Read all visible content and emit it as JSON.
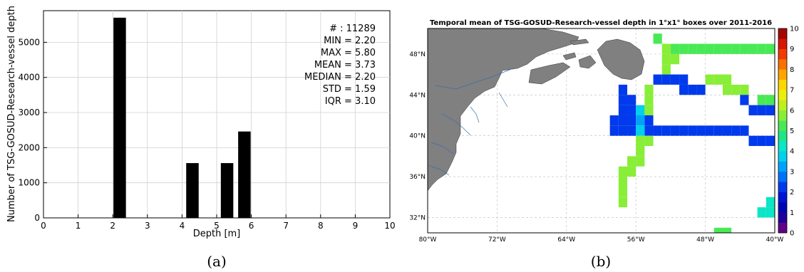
{
  "chart_data": [
    {
      "type": "bar",
      "panel_label": "(a)",
      "xlabel": "Depth [m]",
      "ylabel": "Number of TSG-GOSUD-Research-vessel depth",
      "xlim": [
        0,
        10
      ],
      "ylim": [
        0,
        5900
      ],
      "x_ticks": [
        "0",
        "1",
        "2",
        "3",
        "4",
        "5",
        "6",
        "7",
        "8",
        "9",
        "10"
      ],
      "y_ticks": [
        "0",
        "1000",
        "2000",
        "3000",
        "4000",
        "5000"
      ],
      "grid": true,
      "bars": [
        {
          "x": 2.2,
          "value": 5700
        },
        {
          "x": 4.3,
          "value": 1560
        },
        {
          "x": 5.3,
          "value": 1560
        },
        {
          "x": 5.8,
          "value": 2460
        }
      ],
      "stats": [
        "# : 11289",
        "MIN = 2.20",
        "MAX =  5.80",
        "MEAN = 3.73",
        "MEDIAN = 2.20",
        "STD = 1.59",
        "IQR = 3.10"
      ]
    },
    {
      "type": "heatmap",
      "panel_label": "(b)",
      "title": "Temporal mean of TSG-GOSUD-Research-vessel depth in 1°x1° boxes over 2011-2016",
      "lon_ticks": [
        "80°W",
        "72°W",
        "64°W",
        "56°W",
        "48°W",
        "40°W"
      ],
      "lat_ticks": [
        "48°N",
        "44°N",
        "40°N",
        "36°N",
        "32°N"
      ],
      "lon_range": [
        -80,
        -40
      ],
      "lat_range": [
        30.5,
        50.5
      ],
      "colorbar_ticks": [
        "0",
        "1",
        "2",
        "3",
        "4",
        "5",
        "6",
        "7",
        "8",
        "9",
        "10"
      ],
      "colorbar_range": [
        0,
        10
      ],
      "land_color": "#808080",
      "cells": [
        {
          "lon": -53.5,
          "lat": 49.5,
          "value": 5.2
        },
        {
          "lon": -52.5,
          "lat": 48.5,
          "value": 5.8
        },
        {
          "lon": -51.5,
          "lat": 48.5,
          "value": 5.2
        },
        {
          "lon": -50.5,
          "lat": 48.5,
          "value": 5.2
        },
        {
          "lon": -49.5,
          "lat": 48.5,
          "value": 5.2
        },
        {
          "lon": -48.5,
          "lat": 48.5,
          "value": 5.2
        },
        {
          "lon": -47.5,
          "lat": 48.5,
          "value": 5.2
        },
        {
          "lon": -46.5,
          "lat": 48.5,
          "value": 5.2
        },
        {
          "lon": -45.5,
          "lat": 48.5,
          "value": 5.2
        },
        {
          "lon": -44.5,
          "lat": 48.5,
          "value": 5.2
        },
        {
          "lon": -43.5,
          "lat": 48.5,
          "value": 5.2
        },
        {
          "lon": -42.5,
          "lat": 48.5,
          "value": 5.2
        },
        {
          "lon": -41.5,
          "lat": 48.5,
          "value": 5.2
        },
        {
          "lon": -40.5,
          "lat": 48.5,
          "value": 5.2
        },
        {
          "lon": -52.5,
          "lat": 47.5,
          "value": 5.8
        },
        {
          "lon": -51.5,
          "lat": 47.5,
          "value": 5.8
        },
        {
          "lon": -52.5,
          "lat": 46.5,
          "value": 5.8
        },
        {
          "lon": -53.5,
          "lat": 45.5,
          "value": 2.2
        },
        {
          "lon": -52.5,
          "lat": 45.5,
          "value": 2.2
        },
        {
          "lon": -51.5,
          "lat": 45.5,
          "value": 2.2
        },
        {
          "lon": -50.5,
          "lat": 45.5,
          "value": 2.2
        },
        {
          "lon": -47.5,
          "lat": 45.5,
          "value": 5.8
        },
        {
          "lon": -46.5,
          "lat": 45.5,
          "value": 5.8
        },
        {
          "lon": -45.5,
          "lat": 45.5,
          "value": 5.8
        },
        {
          "lon": -54.5,
          "lat": 44.5,
          "value": 5.8
        },
        {
          "lon": -57.5,
          "lat": 44.5,
          "value": 2.2
        },
        {
          "lon": -50.5,
          "lat": 44.5,
          "value": 2.2
        },
        {
          "lon": -49.5,
          "lat": 44.5,
          "value": 2.2
        },
        {
          "lon": -48.5,
          "lat": 44.5,
          "value": 2.2
        },
        {
          "lon": -45.5,
          "lat": 44.5,
          "value": 5.8
        },
        {
          "lon": -44.5,
          "lat": 44.5,
          "value": 5.8
        },
        {
          "lon": -43.5,
          "lat": 44.5,
          "value": 5.8
        },
        {
          "lon": -57.5,
          "lat": 43.5,
          "value": 2.2
        },
        {
          "lon": -56.5,
          "lat": 43.5,
          "value": 2.2
        },
        {
          "lon": -54.5,
          "lat": 43.5,
          "value": 5.8
        },
        {
          "lon": -43.5,
          "lat": 43.5,
          "value": 2.2
        },
        {
          "lon": -41.5,
          "lat": 43.5,
          "value": 5.2
        },
        {
          "lon": -40.5,
          "lat": 43.5,
          "value": 5.2
        },
        {
          "lon": -57.5,
          "lat": 42.5,
          "value": 2.2
        },
        {
          "lon": -56.5,
          "lat": 42.5,
          "value": 2.2
        },
        {
          "lon": -55.5,
          "lat": 42.5,
          "value": 3.5
        },
        {
          "lon": -54.5,
          "lat": 42.5,
          "value": 5.8
        },
        {
          "lon": -42.5,
          "lat": 42.5,
          "value": 2.2
        },
        {
          "lon": -41.5,
          "lat": 42.5,
          "value": 2.2
        },
        {
          "lon": -40.5,
          "lat": 42.5,
          "value": 2.2
        },
        {
          "lon": -58.5,
          "lat": 41.5,
          "value": 2.2
        },
        {
          "lon": -57.5,
          "lat": 41.5,
          "value": 2.2
        },
        {
          "lon": -56.5,
          "lat": 41.5,
          "value": 2.2
        },
        {
          "lon": -55.5,
          "lat": 41.5,
          "value": 3.0
        },
        {
          "lon": -54.5,
          "lat": 41.5,
          "value": 2.2
        },
        {
          "lon": -58.5,
          "lat": 40.5,
          "value": 2.2
        },
        {
          "lon": -57.5,
          "lat": 40.5,
          "value": 2.2
        },
        {
          "lon": -56.5,
          "lat": 40.5,
          "value": 2.2
        },
        {
          "lon": -55.5,
          "lat": 40.5,
          "value": 3.5
        },
        {
          "lon": -54.5,
          "lat": 40.5,
          "value": 2.2
        },
        {
          "lon": -53.5,
          "lat": 40.5,
          "value": 2.2
        },
        {
          "lon": -52.5,
          "lat": 40.5,
          "value": 2.2
        },
        {
          "lon": -51.5,
          "lat": 40.5,
          "value": 2.2
        },
        {
          "lon": -50.5,
          "lat": 40.5,
          "value": 2.2
        },
        {
          "lon": -49.5,
          "lat": 40.5,
          "value": 2.2
        },
        {
          "lon": -48.5,
          "lat": 40.5,
          "value": 2.2
        },
        {
          "lon": -47.5,
          "lat": 40.5,
          "value": 2.2
        },
        {
          "lon": -46.5,
          "lat": 40.5,
          "value": 2.2
        },
        {
          "lon": -45.5,
          "lat": 40.5,
          "value": 2.2
        },
        {
          "lon": -44.5,
          "lat": 40.5,
          "value": 2.2
        },
        {
          "lon": -43.5,
          "lat": 40.5,
          "value": 2.2
        },
        {
          "lon": -42.5,
          "lat": 39.5,
          "value": 2.2
        },
        {
          "lon": -41.5,
          "lat": 39.5,
          "value": 2.2
        },
        {
          "lon": -40.5,
          "lat": 39.5,
          "value": 2.2
        },
        {
          "lon": -55.5,
          "lat": 39.5,
          "value": 5.8
        },
        {
          "lon": -54.5,
          "lat": 39.5,
          "value": 5.8
        },
        {
          "lon": -55.5,
          "lat": 38.5,
          "value": 5.8
        },
        {
          "lon": -55.5,
          "lat": 37.5,
          "value": 5.8
        },
        {
          "lon": -56.5,
          "lat": 37.5,
          "value": 5.8
        },
        {
          "lon": -56.5,
          "lat": 36.5,
          "value": 5.8
        },
        {
          "lon": -57.5,
          "lat": 36.5,
          "value": 5.8
        },
        {
          "lon": -57.5,
          "lat": 35.5,
          "value": 5.8
        },
        {
          "lon": -57.5,
          "lat": 34.5,
          "value": 5.8
        },
        {
          "lon": -57.5,
          "lat": 33.5,
          "value": 5.8
        },
        {
          "lon": -40.5,
          "lat": 33.5,
          "value": 4.3
        },
        {
          "lon": -41.5,
          "lat": 32.5,
          "value": 4.3
        },
        {
          "lon": -40.5,
          "lat": 32.5,
          "value": 4.3
        },
        {
          "lon": -46.5,
          "lat": 30.5,
          "value": 5.2
        },
        {
          "lon": -45.5,
          "lat": 30.5,
          "value": 5.2
        }
      ]
    }
  ]
}
